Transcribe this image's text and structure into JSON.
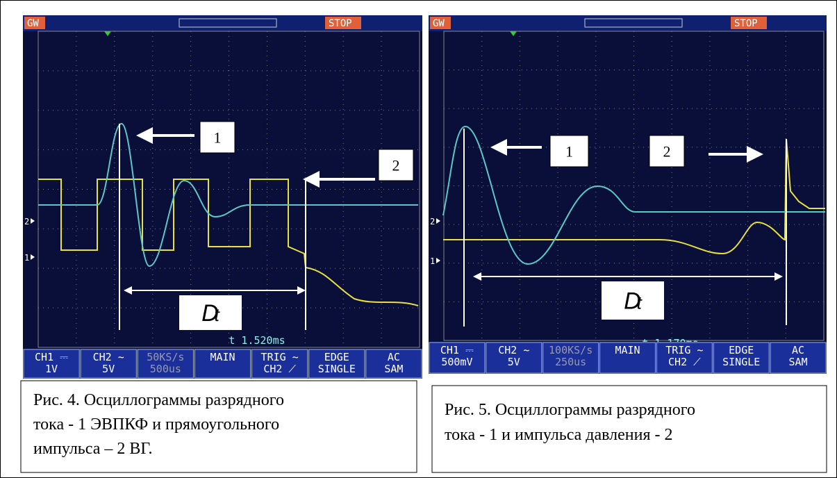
{
  "figures": [
    {
      "scope": {
        "status_left": "GW",
        "status_right": "STOP",
        "channel_markers": [
          "2",
          "1"
        ],
        "labels": [
          "1",
          "2"
        ],
        "delta": {
          "symbol": "D",
          "sub": "t"
        },
        "timebase": "t 1.520ms",
        "menu": [
          [
            "CH1 ⎓",
            "1V"
          ],
          [
            "CH2 ~",
            "5V"
          ],
          [
            "50KS/s",
            "500us"
          ],
          [
            "MAIN"
          ],
          [
            "TRIG ~",
            "CH2 ⟋"
          ],
          [
            "EDGE",
            "SINGLE"
          ],
          [
            "AC",
            "SAM"
          ]
        ]
      },
      "caption": [
        "Рис. 4. Осциллограммы разрядного",
        "тока  - 1 ЭВПКФ и  прямоугольного",
        "импульса – 2 ВГ."
      ]
    },
    {
      "scope": {
        "status_left": "GW",
        "status_right": "STOP",
        "channel_markers": [
          "2",
          "1"
        ],
        "labels": [
          "1",
          "2"
        ],
        "delta": {
          "symbol": "D",
          "sub": "t"
        },
        "timebase": "t 1.170ms",
        "menu": [
          [
            "CH1 ⎓",
            "500mV"
          ],
          [
            "CH2 ~",
            "5V"
          ],
          [
            "100KS/s",
            "250us"
          ],
          [
            "MAIN"
          ],
          [
            "TRIG ~",
            "CH2 ⟋"
          ],
          [
            "EDGE",
            "SINGLE"
          ],
          [
            "AC",
            "SAM"
          ]
        ]
      },
      "caption": [
        "Рис. 5. Осциллограммы разрядного",
        "тока  - 1 и импульса давления - 2"
      ]
    }
  ]
}
